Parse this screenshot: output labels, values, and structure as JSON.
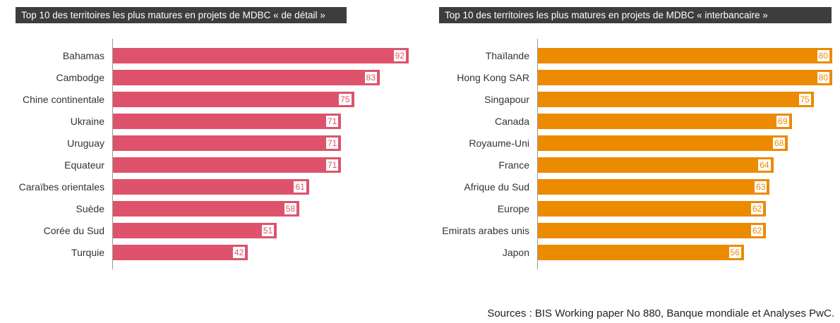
{
  "chart_data": [
    {
      "type": "bar",
      "orientation": "horizontal",
      "title": "Top 10 des territoires les plus matures en projets de MDBC « de détail »",
      "categories": [
        "Bahamas",
        "Cambodge",
        "Chine continentale",
        "Ukraine",
        "Uruguay",
        "Equateur",
        "Caraïbes orientales",
        "Suède",
        "Corée du Sud",
        "Turquie"
      ],
      "values": [
        92,
        83,
        75,
        71,
        71,
        71,
        61,
        58,
        51,
        42
      ],
      "color": "#de536b",
      "xlim": [
        0,
        92
      ]
    },
    {
      "type": "bar",
      "orientation": "horizontal",
      "title": "Top 10 des territoires les plus matures en projets de MDBC « interbancaire »",
      "categories": [
        "Thaïlande",
        "Hong Kong SAR",
        "Singapour",
        "Canada",
        "Royaume-Uni",
        "France",
        "Afrique du Sud",
        "Europe",
        "Emirats arabes unis",
        "Japon"
      ],
      "values": [
        80,
        80,
        75,
        69,
        68,
        64,
        63,
        62,
        62,
        56
      ],
      "color": "#ec8a00",
      "xlim": [
        0,
        80
      ]
    }
  ],
  "source": "Sources : BIS Working paper No 880, Banque mondiale et Analyses PwC."
}
